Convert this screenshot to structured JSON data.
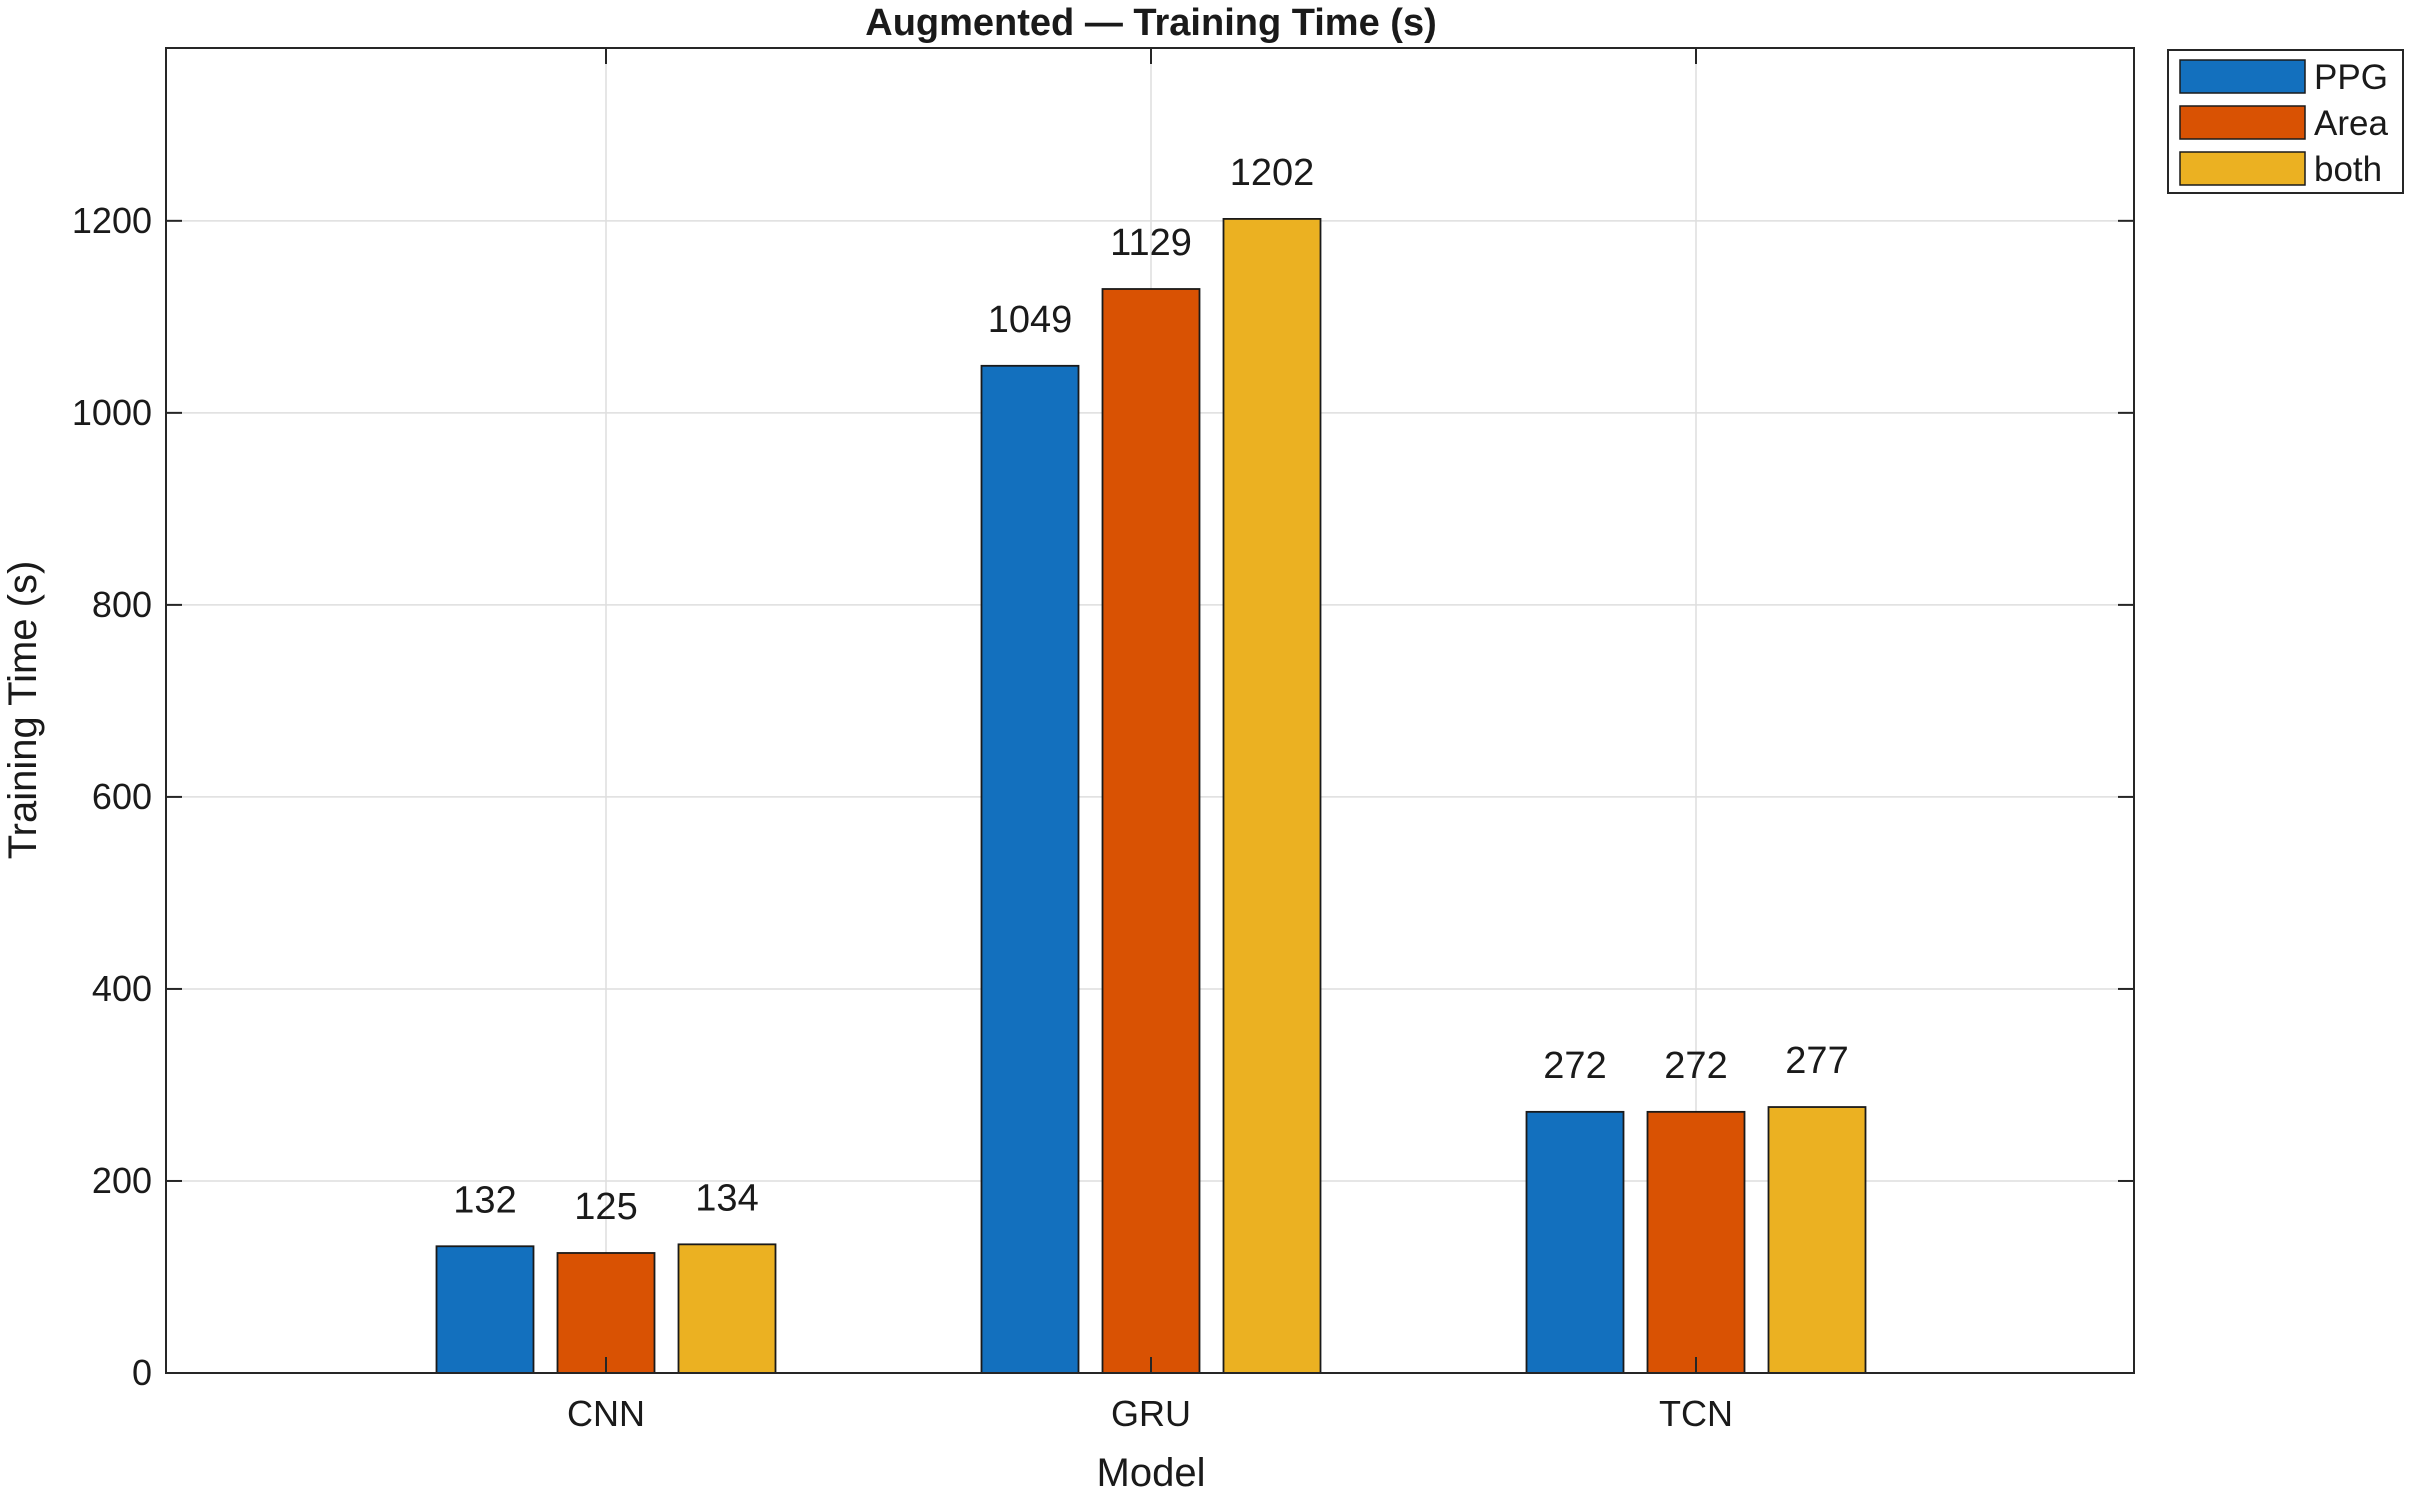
{
  "chart_data": {
    "type": "bar",
    "title": "Augmented — Training Time (s)",
    "xlabel": "Model",
    "ylabel": "Training Time (s)",
    "categories": [
      "CNN",
      "GRU",
      "TCN"
    ],
    "series": [
      {
        "name": "PPG",
        "values": [
          132,
          1049,
          272
        ],
        "color": "#1370BE"
      },
      {
        "name": "Area",
        "values": [
          125,
          1129,
          272
        ],
        "color": "#D95203"
      },
      {
        "name": "both",
        "values": [
          134,
          1202,
          277
        ],
        "color": "#EBB122"
      }
    ],
    "ylim": [
      0,
      1380
    ],
    "yticks": [
      0,
      200,
      400,
      600,
      800,
      1000,
      1200
    ],
    "data_labels": true,
    "grid": true,
    "legend": "outside top-right"
  }
}
